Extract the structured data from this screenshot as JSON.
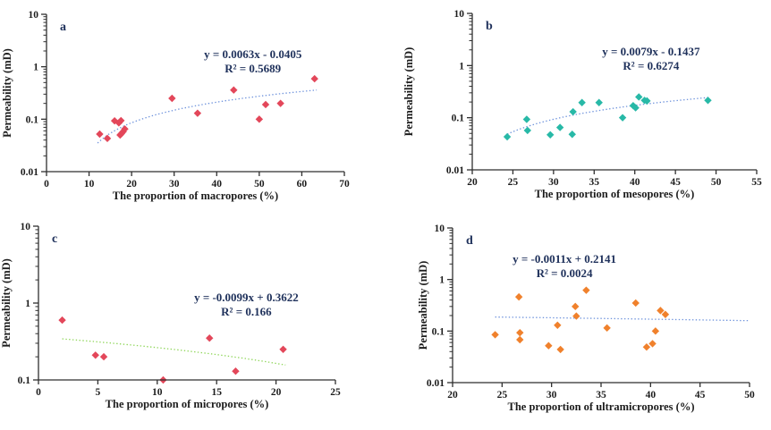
{
  "figure": {
    "background": "#ffffff"
  },
  "colors": {
    "axis": "#2f2f2f",
    "tick_text": "#1c1c1c",
    "axis_title_text": "#1c1c1c",
    "equation_text": "#20325c",
    "panel_letter_text": "#20325c"
  },
  "chart_data": [
    {
      "id": "a",
      "type": "scatter",
      "panel_label": "a",
      "xlabel": "The proportion of macropores (%)",
      "ylabel": "Permeability (mD)",
      "xlim": [
        0,
        70
      ],
      "xticks": [
        0,
        10,
        20,
        30,
        40,
        50,
        60,
        70
      ],
      "ylog": true,
      "ylim": [
        0.01,
        10
      ],
      "yticks": [
        0.01,
        0.1,
        1,
        10
      ],
      "marker_color": "#e3475a",
      "equation": "y = 0.0063x - 0.0405",
      "r_squared": "R² = 0.5689",
      "equation_anchor": [
        48.5,
        1.45
      ],
      "trend": {
        "slope": 0.0063,
        "intercept": -0.0405,
        "x_start": 12,
        "x_end": 63.5,
        "color": "#6f93dc"
      },
      "points": [
        [
          12.5,
          0.052
        ],
        [
          14.3,
          0.043
        ],
        [
          16.0,
          0.093
        ],
        [
          17.0,
          0.085
        ],
        [
          17.5,
          0.094
        ],
        [
          17.3,
          0.05
        ],
        [
          17.6,
          0.053
        ],
        [
          18.0,
          0.058
        ],
        [
          18.4,
          0.065
        ],
        [
          29.5,
          0.25
        ],
        [
          35.5,
          0.13
        ],
        [
          44.0,
          0.36
        ],
        [
          50.0,
          0.1
        ],
        [
          51.5,
          0.19
        ],
        [
          55.0,
          0.2
        ],
        [
          63.0,
          0.59
        ]
      ]
    },
    {
      "id": "b",
      "type": "scatter",
      "panel_label": "b",
      "xlabel": "The proportion of mesopores (%)",
      "ylabel": "Permeability (mD)",
      "xlim": [
        20,
        55
      ],
      "xticks": [
        20,
        25,
        30,
        35,
        40,
        45,
        50,
        55
      ],
      "ylog": true,
      "ylim": [
        0.01,
        10
      ],
      "yticks": [
        0.01,
        0.1,
        1,
        10
      ],
      "marker_color": "#28b9a7",
      "equation": "y = 0.0079x - 0.1437",
      "r_squared": "R² = 0.6274",
      "equation_anchor": [
        42,
        1.55
      ],
      "trend": {
        "slope": 0.0079,
        "intercept": -0.1437,
        "x_start": 24.3,
        "x_end": 49.3,
        "color": "#6f93dc"
      },
      "points": [
        [
          24.3,
          0.043
        ],
        [
          26.7,
          0.093
        ],
        [
          26.8,
          0.057
        ],
        [
          29.6,
          0.047
        ],
        [
          30.8,
          0.065
        ],
        [
          32.3,
          0.048
        ],
        [
          32.4,
          0.13
        ],
        [
          33.5,
          0.195
        ],
        [
          35.6,
          0.195
        ],
        [
          38.5,
          0.1
        ],
        [
          39.8,
          0.17
        ],
        [
          40.1,
          0.155
        ],
        [
          40.5,
          0.25
        ],
        [
          41.2,
          0.215
        ],
        [
          41.5,
          0.21
        ],
        [
          49.0,
          0.215
        ]
      ]
    },
    {
      "id": "c",
      "type": "scatter",
      "panel_label": "c",
      "xlabel": "The proportion of micropores (%)",
      "ylabel": "Permeability (mD)",
      "xlim": [
        0,
        25
      ],
      "xticks": [
        0,
        5,
        10,
        15,
        20,
        25
      ],
      "ylog": true,
      "ylim": [
        0.1,
        10
      ],
      "yticks": [
        0.1,
        1,
        10
      ],
      "marker_color": "#e3475a",
      "equation": "y = -0.0099x + 0.3622",
      "r_squared": "R² = 0.166",
      "equation_anchor": [
        17.5,
        1.05
      ],
      "trend": {
        "slope": -0.0099,
        "intercept": 0.3622,
        "x_start": 2.0,
        "x_end": 20.8,
        "color": "#8fd65a"
      },
      "points": [
        [
          2.0,
          0.6
        ],
        [
          4.8,
          0.21
        ],
        [
          5.5,
          0.2
        ],
        [
          10.5,
          0.1
        ],
        [
          14.4,
          0.35
        ],
        [
          16.6,
          0.13
        ],
        [
          20.6,
          0.25
        ]
      ]
    },
    {
      "id": "d",
      "type": "scatter",
      "panel_label": "d",
      "xlabel": "The proportion of ultramicropores (%)",
      "ylabel": "Permeability (mD)",
      "xlim": [
        20,
        50
      ],
      "xticks": [
        20,
        25,
        30,
        35,
        40,
        45,
        50
      ],
      "ylog": true,
      "ylim": [
        0.01,
        10
      ],
      "yticks": [
        0.01,
        0.1,
        1,
        10
      ],
      "marker_color": "#f0812c",
      "equation": "y = -0.0011x + 0.2141",
      "r_squared": "R² = 0.0024",
      "equation_anchor": [
        31.3,
        2.1
      ],
      "trend": {
        "slope": -0.0011,
        "intercept": 0.2141,
        "x_start": 24.3,
        "x_end": 50.0,
        "color": "#6f93dc"
      },
      "points": [
        [
          24.3,
          0.085
        ],
        [
          26.7,
          0.46
        ],
        [
          26.8,
          0.093
        ],
        [
          26.8,
          0.068
        ],
        [
          29.7,
          0.052
        ],
        [
          30.6,
          0.13
        ],
        [
          30.9,
          0.044
        ],
        [
          32.4,
          0.3
        ],
        [
          32.5,
          0.195
        ],
        [
          33.5,
          0.62
        ],
        [
          35.6,
          0.115
        ],
        [
          38.5,
          0.35
        ],
        [
          39.6,
          0.049
        ],
        [
          40.2,
          0.057
        ],
        [
          40.5,
          0.1
        ],
        [
          41.0,
          0.25
        ],
        [
          41.5,
          0.21
        ]
      ]
    }
  ]
}
